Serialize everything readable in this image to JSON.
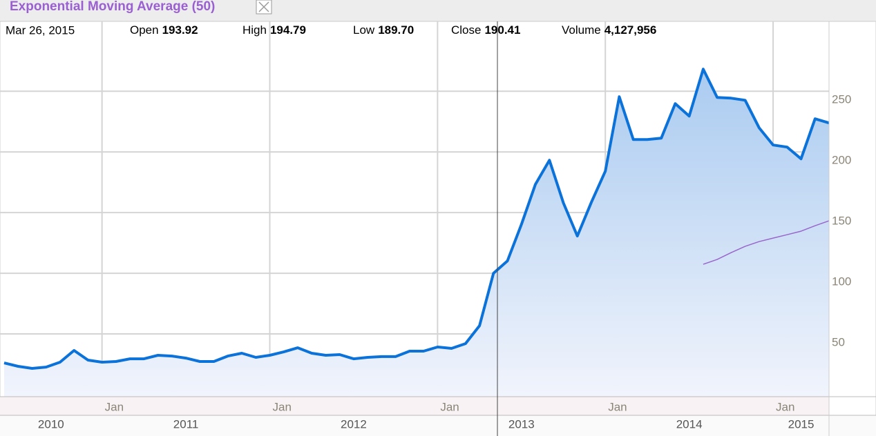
{
  "chart_data": {
    "type": "line",
    "info": {
      "date": "Mar 26, 2015",
      "fields": [
        {
          "label": "Open",
          "value": "193.92"
        },
        {
          "label": "High",
          "value": "194.79"
        },
        {
          "label": "Low",
          "value": "189.70"
        },
        {
          "label": "Close",
          "value": "190.41"
        },
        {
          "label": "Volume",
          "value": "4,127,956"
        }
      ]
    },
    "x": [
      "2010-06",
      "2010-07",
      "2010-08",
      "2010-09",
      "2010-10",
      "2010-11",
      "2010-12",
      "2011-01",
      "2011-02",
      "2011-03",
      "2011-04",
      "2011-05",
      "2011-06",
      "2011-07",
      "2011-08",
      "2011-09",
      "2011-10",
      "2011-11",
      "2011-12",
      "2012-01",
      "2012-02",
      "2012-03",
      "2012-04",
      "2012-05",
      "2012-06",
      "2012-07",
      "2012-08",
      "2012-09",
      "2012-10",
      "2012-11",
      "2012-12",
      "2013-01",
      "2013-02",
      "2013-03",
      "2013-04",
      "2013-05",
      "2013-06",
      "2013-07",
      "2013-08",
      "2013-09",
      "2013-10",
      "2013-11",
      "2013-12",
      "2014-01",
      "2014-02",
      "2014-03",
      "2014-04",
      "2014-05",
      "2014-06",
      "2014-07",
      "2014-08",
      "2014-09",
      "2014-10",
      "2014-11",
      "2014-12",
      "2015-01",
      "2015-02",
      "2015-03",
      "2015-04",
      "2015-05"
    ],
    "series": [
      {
        "color": "#0b72d9",
        "fill": true,
        "values": [
          26.1,
          23.3,
          21.6,
          22.7,
          26.7,
          36.4,
          28.4,
          26.7,
          27.3,
          29.5,
          29.5,
          32.4,
          31.8,
          30.1,
          27.3,
          27.3,
          31.8,
          34.1,
          30.7,
          32.4,
          35.2,
          38.6,
          34.1,
          32.4,
          33.0,
          29.5,
          30.7,
          31.3,
          31.3,
          35.8,
          35.8,
          39.2,
          38.1,
          42.0,
          56.8,
          100,
          110.2,
          140.3,
          173.3,
          193.2,
          158,
          130.7,
          158.5,
          184.1,
          245.5,
          210.2,
          210.2,
          211.4,
          239.8,
          229.5,
          268.2,
          244.9,
          244.3,
          242.6,
          219.9,
          205.7,
          204,
          194.3,
          227.3,
          223.9
        ]
      },
      {
        "name": "Exponential Moving Average (50)",
        "color": "#9966cc",
        "fill": false,
        "values": [
          null,
          null,
          null,
          null,
          null,
          null,
          null,
          null,
          null,
          null,
          null,
          null,
          null,
          null,
          null,
          null,
          null,
          null,
          null,
          null,
          null,
          null,
          null,
          null,
          null,
          null,
          null,
          null,
          null,
          null,
          null,
          null,
          null,
          null,
          null,
          null,
          null,
          null,
          null,
          null,
          null,
          null,
          null,
          null,
          null,
          null,
          null,
          null,
          null,
          null,
          107.4,
          111.4,
          117,
          122.2,
          126.1,
          129,
          131.8,
          134.7,
          139.2,
          143.2
        ]
      }
    ],
    "xlim": [
      "2010-06",
      "2015-05"
    ],
    "xticks": [
      {
        "value": "2011-01",
        "label": "Jan"
      },
      {
        "value": "2012-01",
        "label": "Jan"
      },
      {
        "value": "2013-01",
        "label": "Jan"
      },
      {
        "value": "2014-01",
        "label": "Jan"
      },
      {
        "value": "2015-01",
        "label": "Jan"
      }
    ],
    "years": [
      "2010",
      "2011",
      "2012",
      "2013",
      "2014",
      "2015"
    ],
    "ylim": [
      0,
      307
    ],
    "yticks": [
      50,
      100,
      150,
      200,
      250
    ],
    "grid": true
  }
}
